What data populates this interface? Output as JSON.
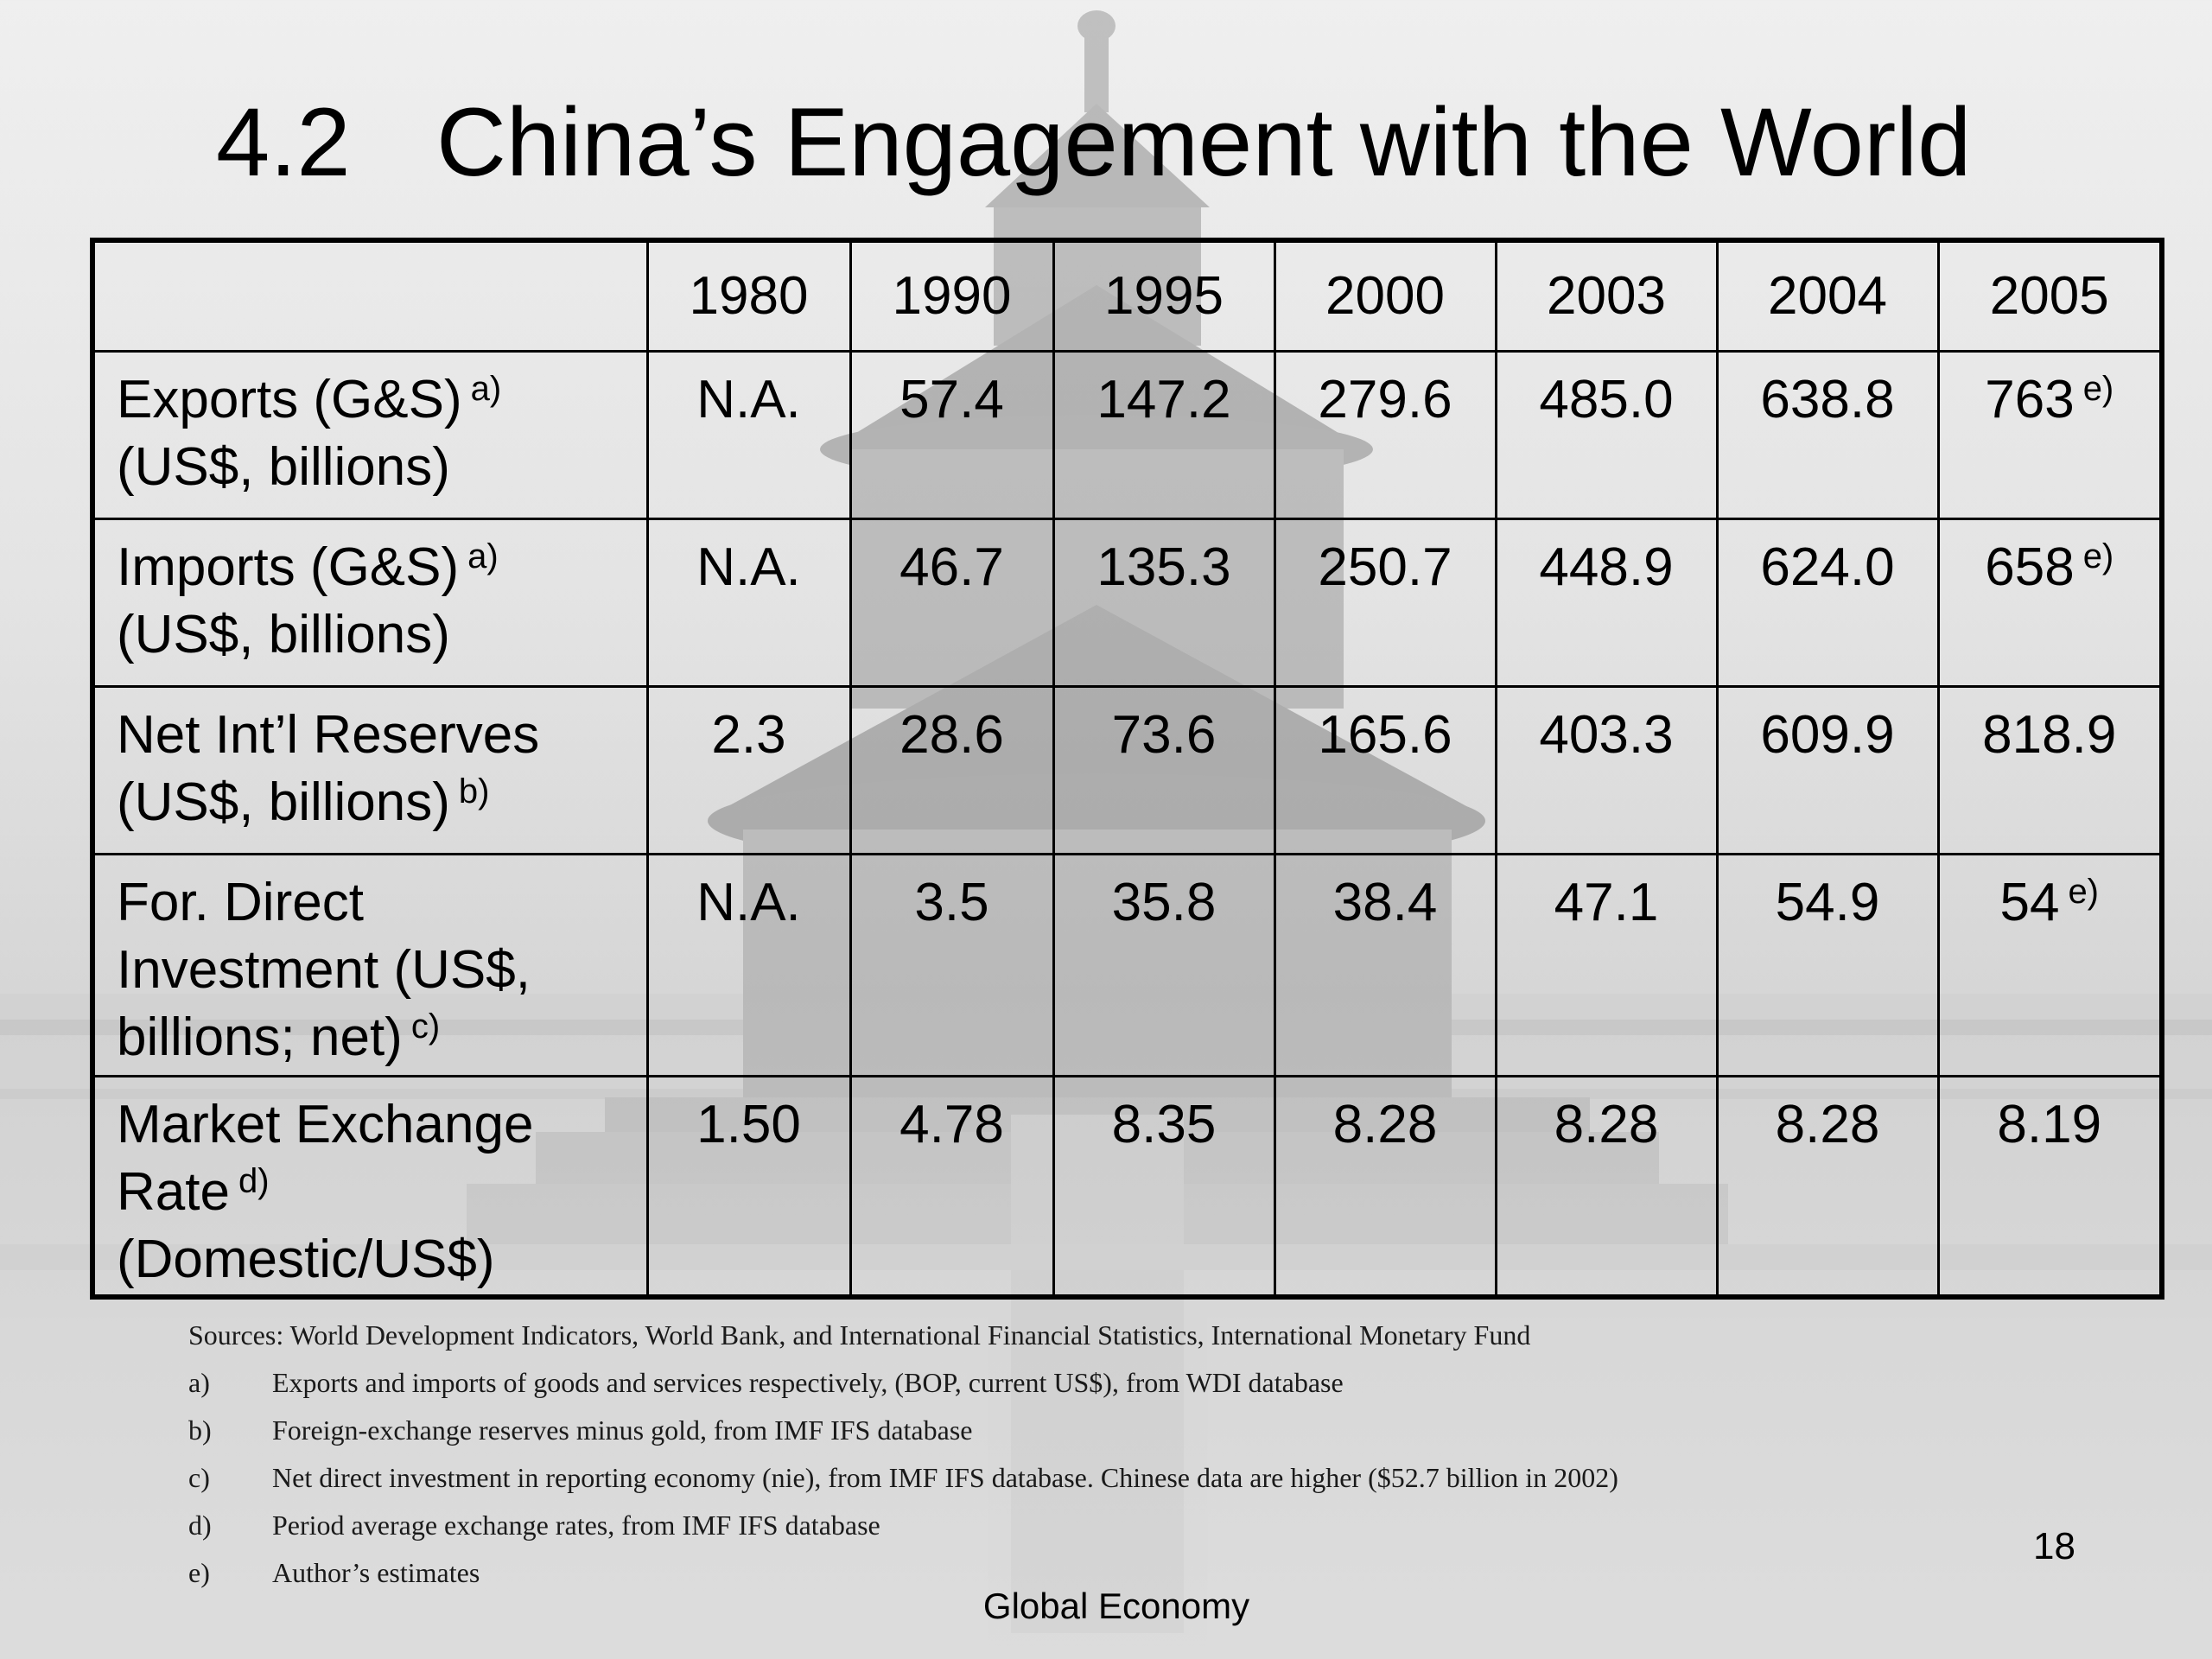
{
  "slide": {
    "title_number": "4.2",
    "title_text": "China’s Engagement with the World",
    "page_number": "18",
    "footer": "Global Economy"
  },
  "table": {
    "years": [
      "1980",
      "1990",
      "1995",
      "2000",
      "2003",
      "2004",
      "2005"
    ],
    "rows": [
      {
        "label_lines": [
          "Exports (G&S)",
          "(US$, billions)"
        ],
        "label_note": "a)",
        "values": [
          {
            "v": "N.A.",
            "note": ""
          },
          {
            "v": "57.4",
            "note": ""
          },
          {
            "v": "147.2",
            "note": ""
          },
          {
            "v": "279.6",
            "note": ""
          },
          {
            "v": "485.0",
            "note": ""
          },
          {
            "v": "638.8",
            "note": ""
          },
          {
            "v": "763",
            "note": "e)"
          }
        ]
      },
      {
        "label_lines": [
          "Imports (G&S)",
          "(US$, billions)"
        ],
        "label_note": "a)",
        "values": [
          {
            "v": "N.A.",
            "note": ""
          },
          {
            "v": "46.7",
            "note": ""
          },
          {
            "v": "135.3",
            "note": ""
          },
          {
            "v": "250.7",
            "note": ""
          },
          {
            "v": "448.9",
            "note": ""
          },
          {
            "v": "624.0",
            "note": ""
          },
          {
            "v": "658",
            "note": "e)"
          }
        ]
      },
      {
        "label_lines": [
          "Net Int’l Reserves",
          "(US$, billions)"
        ],
        "label_note": "b)",
        "values": [
          {
            "v": "2.3",
            "note": ""
          },
          {
            "v": "28.6",
            "note": ""
          },
          {
            "v": "73.6",
            "note": ""
          },
          {
            "v": "165.6",
            "note": ""
          },
          {
            "v": "403.3",
            "note": ""
          },
          {
            "v": "609.9",
            "note": ""
          },
          {
            "v": "818.9",
            "note": ""
          }
        ]
      },
      {
        "label_lines": [
          "For. Direct",
          "Investment (US$,",
          "billions; net)"
        ],
        "label_note": "c)",
        "values": [
          {
            "v": "N.A.",
            "note": ""
          },
          {
            "v": "3.5",
            "note": ""
          },
          {
            "v": "35.8",
            "note": ""
          },
          {
            "v": "38.4",
            "note": ""
          },
          {
            "v": "47.1",
            "note": ""
          },
          {
            "v": "54.9",
            "note": ""
          },
          {
            "v": "54",
            "note": "e)"
          }
        ]
      },
      {
        "label_lines": [
          "Market Exchange",
          "Rate",
          "(Domestic/US$)"
        ],
        "label_note": "d)",
        "values": [
          {
            "v": "1.50",
            "note": ""
          },
          {
            "v": "4.78",
            "note": ""
          },
          {
            "v": "8.35",
            "note": ""
          },
          {
            "v": "8.28",
            "note": ""
          },
          {
            "v": "8.28",
            "note": ""
          },
          {
            "v": "8.28",
            "note": ""
          },
          {
            "v": "8.19",
            "note": ""
          }
        ]
      }
    ]
  },
  "sources": {
    "main": "Sources: World Development Indicators, World Bank, and International Financial Statistics, International Monetary Fund",
    "notes": [
      {
        "mark": "a)",
        "text": "Exports and imports of goods and services respectively, (BOP, current US$), from WDI database"
      },
      {
        "mark": "b)",
        "text": "Foreign-exchange reserves minus gold, from IMF IFS database"
      },
      {
        "mark": "c)",
        "text": "Net direct investment in reporting economy (nie), from IMF IFS database.  Chinese data are higher ($52.7 billion in 2002)"
      },
      {
        "mark": "d)",
        "text": "Period average exchange rates, from IMF IFS database"
      },
      {
        "mark": "e)",
        "text": "Author’s estimates"
      }
    ]
  }
}
